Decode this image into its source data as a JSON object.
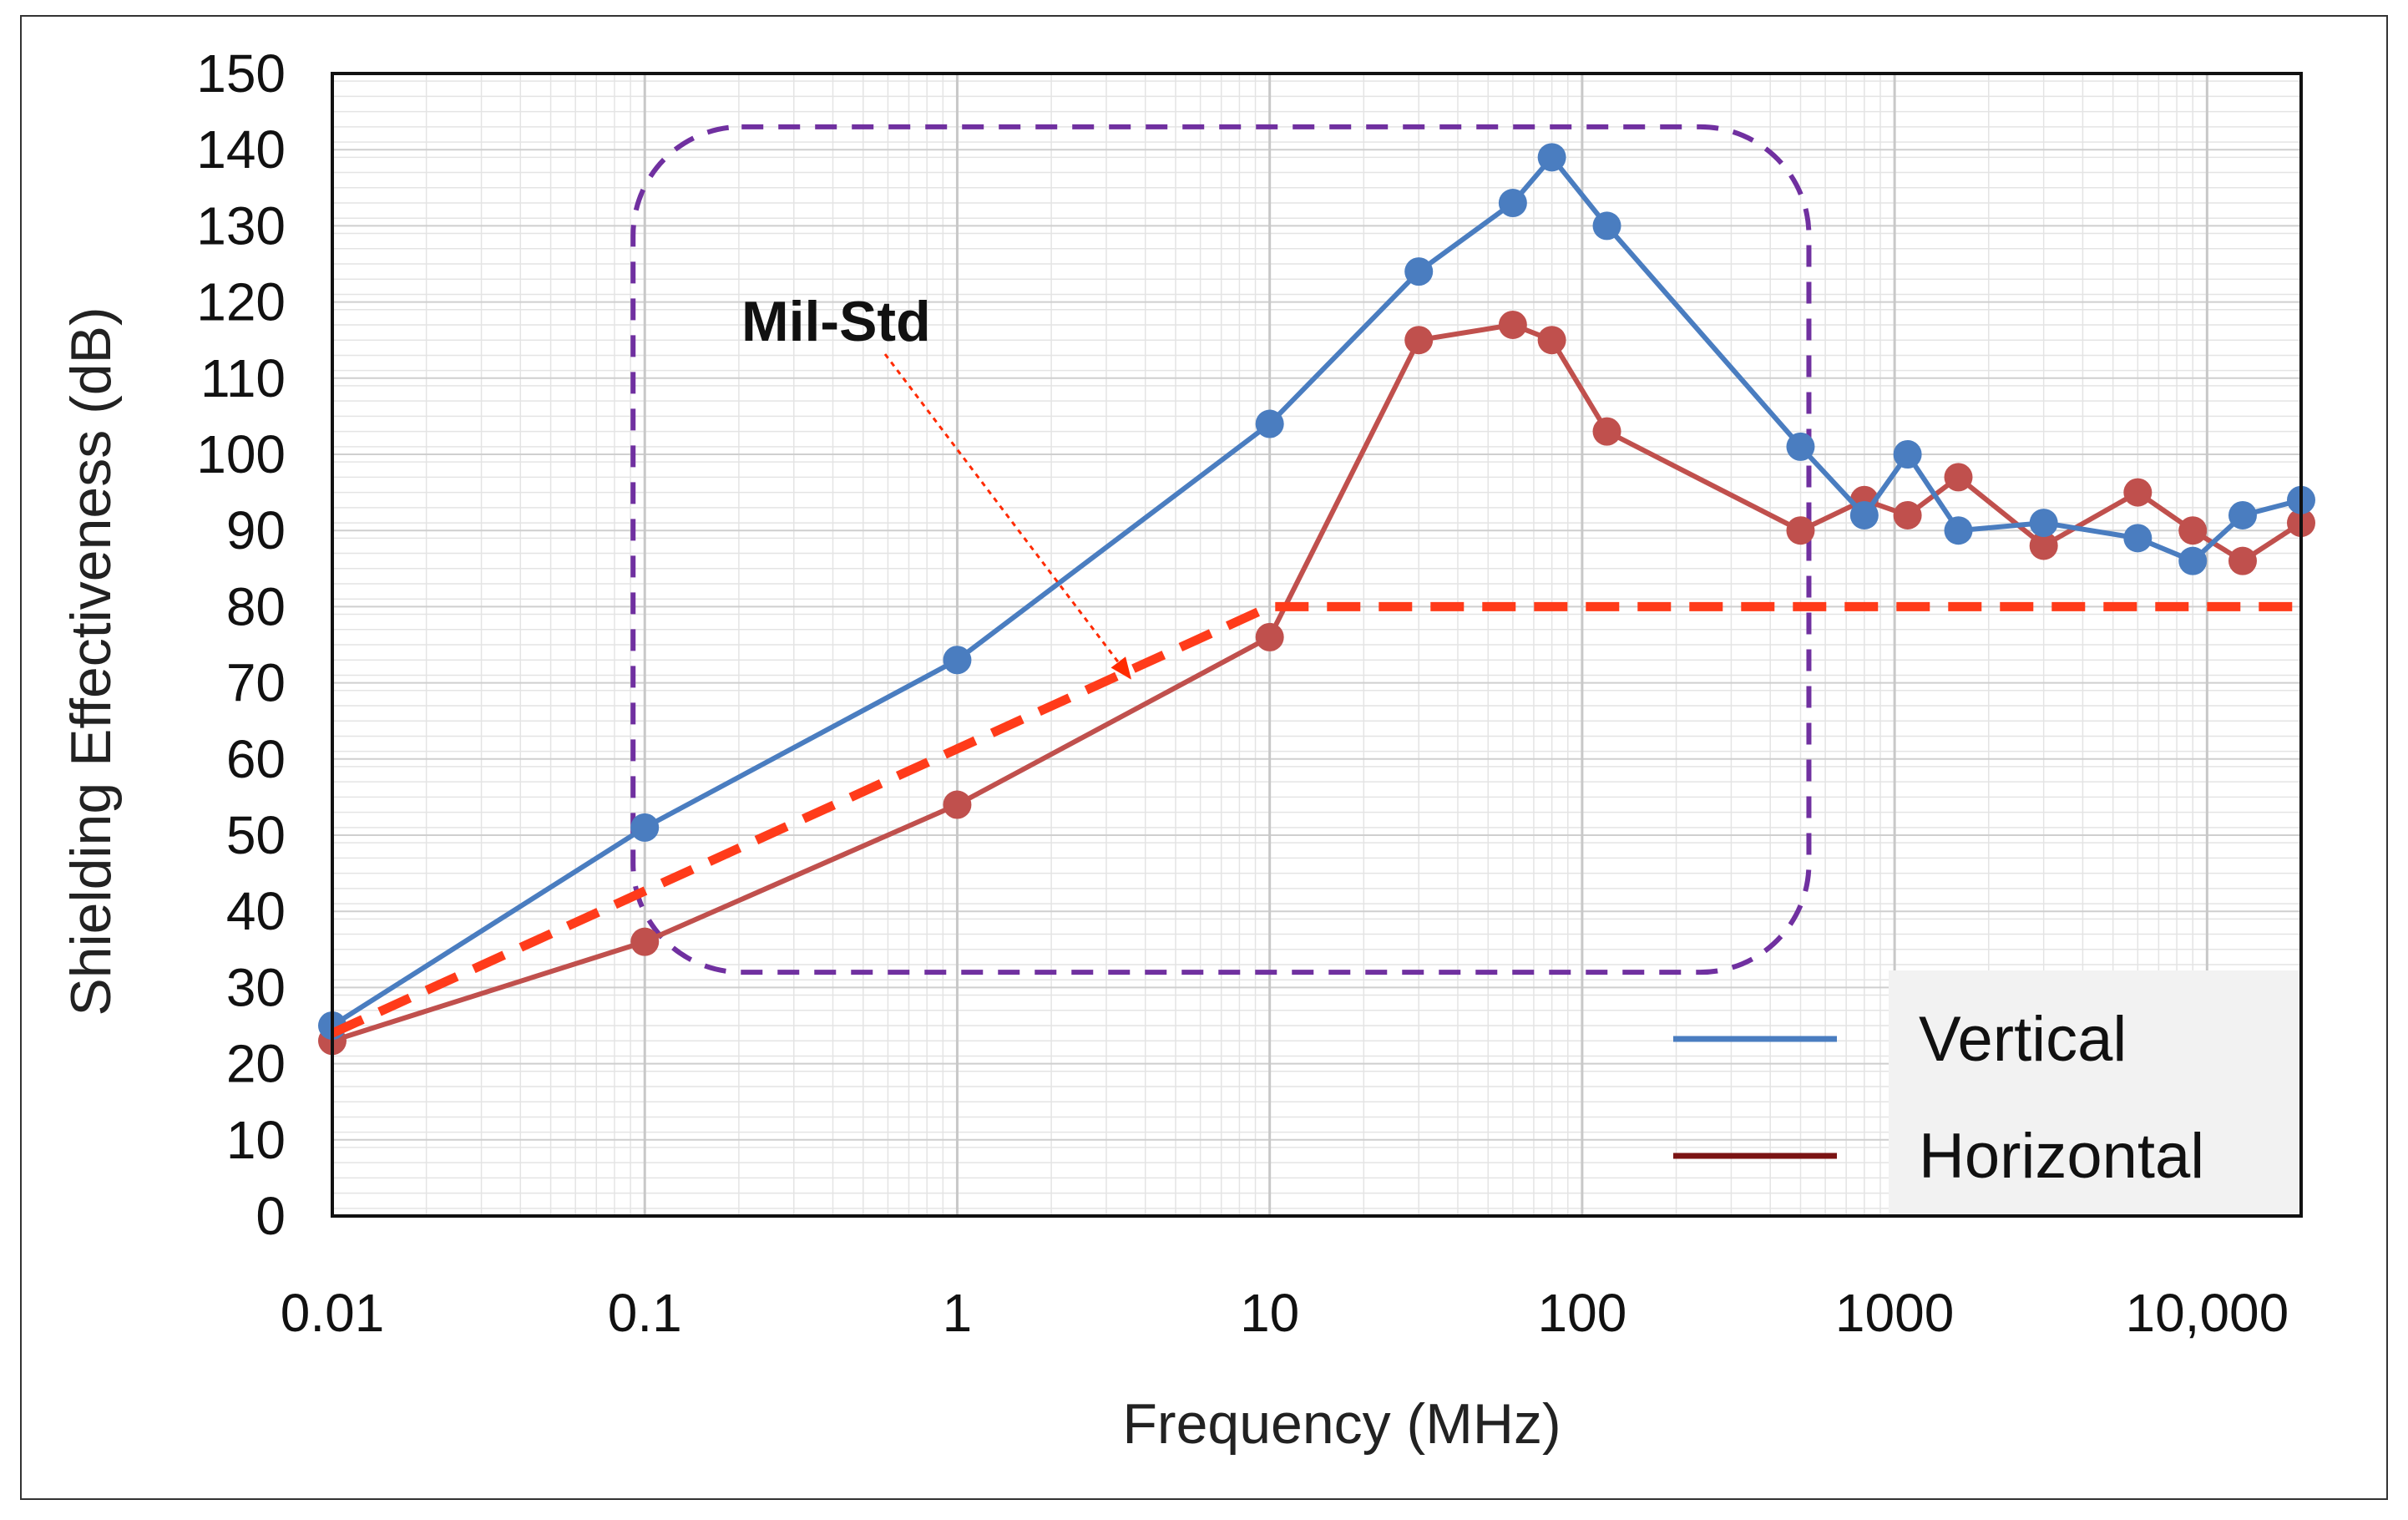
{
  "chart_data": {
    "type": "line",
    "title": "",
    "xlabel": "Frequency (MHz)",
    "ylabel": "Shielding Effectiveness (dB)",
    "xscale": "log",
    "xlim": [
      0.01,
      20000
    ],
    "ylim": [
      0,
      150
    ],
    "grid": true,
    "x_tick_values": [
      0.01,
      0.1,
      1,
      10,
      100,
      1000,
      10000
    ],
    "x_tick_labels": [
      "0.01",
      "0.1",
      "1",
      "10",
      "100",
      "1000",
      "10,000"
    ],
    "y_ticks": [
      0,
      10,
      20,
      30,
      40,
      50,
      60,
      70,
      80,
      90,
      100,
      110,
      120,
      130,
      140,
      150
    ],
    "series": [
      {
        "name": "Vertical",
        "color": "#4a7dc0",
        "x": [
          0.01,
          0.1,
          1,
          10,
          30,
          60,
          80,
          120,
          500,
          800,
          1100,
          1600,
          3000,
          6000,
          9000,
          13000,
          20000
        ],
        "y": [
          25,
          51,
          73,
          104,
          124,
          133,
          139,
          130,
          101,
          92,
          100,
          90,
          91,
          89,
          86,
          92,
          94
        ]
      },
      {
        "name": "Horizontal",
        "color": "#c0504d",
        "legend_color": "#7b1414",
        "x": [
          0.01,
          0.1,
          1,
          10,
          30,
          60,
          80,
          120,
          500,
          800,
          1100,
          1600,
          3000,
          6000,
          9000,
          13000,
          20000
        ],
        "y": [
          23,
          36,
          54,
          76,
          115,
          117,
          115,
          103,
          90,
          94,
          92,
          97,
          88,
          95,
          90,
          86,
          91
        ]
      },
      {
        "name": "Mil-Std",
        "color": "#ff3b1a",
        "style": "dashed",
        "x": [
          0.01,
          10,
          20000
        ],
        "y": [
          24,
          80,
          80
        ]
      }
    ],
    "annotations": [
      {
        "text": "Mil-Std",
        "arrow_to_x": 3,
        "arrow_to_y": 70
      }
    ],
    "highlight_box": {
      "x_range": [
        0.1,
        500
      ],
      "y_range": [
        32,
        143
      ],
      "style": "dashed",
      "color": "#7030a0"
    },
    "legend": {
      "position": "bottom-right",
      "entries": [
        "Vertical",
        "Horizontal"
      ]
    }
  }
}
